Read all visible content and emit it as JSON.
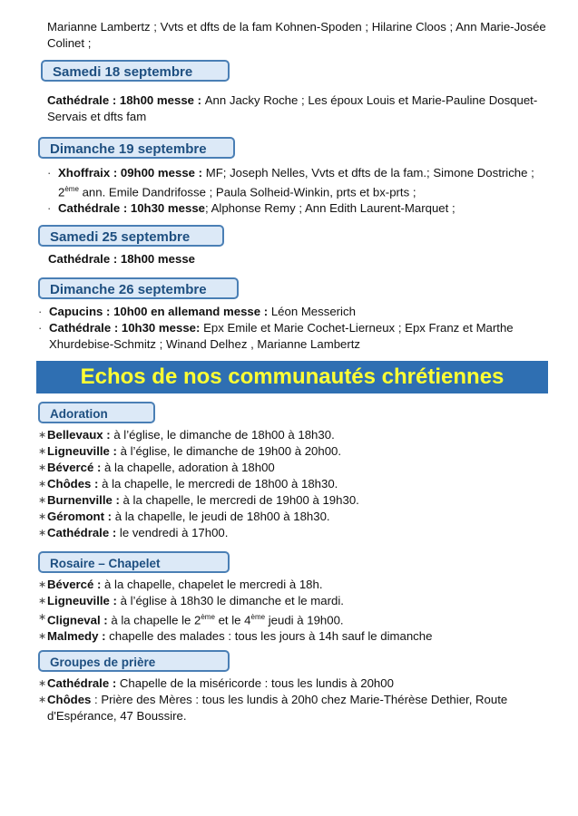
{
  "intro": [
    [
      {
        "t": "Marianne Lambertz ; Vvts et dfts de la fam Kohnen-Spoden ; Hilarine Cloos ; Ann Marie-Josée Colinet ;"
      }
    ]
  ],
  "sections": [
    {
      "header": "Samedi 18 septembre",
      "bullet": "",
      "items": [
        [
          {
            "t": "Cathédrale : 18h00 messe : ",
            "b": true
          },
          {
            "t": "Ann Jacky Roche ; Les époux Louis et Marie-Pauline Dosquet-Servais et dfts fam"
          }
        ]
      ]
    },
    {
      "header": "Dimanche 19 septembre",
      "bullet": "·",
      "items": [
        [
          {
            "t": "Xhoffraix : 09h00 messe : ",
            "b": true
          },
          {
            "t": "MF; Joseph Nelles, Vvts et dfts de la fam.; Simone Dostriche ; 2"
          },
          {
            "t": "ème",
            "sup": true
          },
          {
            "t": " ann. Emile Dandrifosse ; Paula Solheid-Winkin, prts et bx-prts ;"
          }
        ],
        [
          {
            "t": "Cathédrale : 10h30 messe",
            "b": true
          },
          {
            "t": "; Alphonse Remy ; Ann Edith Laurent-Marquet ;"
          }
        ]
      ]
    },
    {
      "header": "Samedi 25 septembre",
      "bullet": "",
      "items": [
        [
          {
            "t": "Cathédrale : 18h00 messe",
            "b": true
          }
        ]
      ]
    },
    {
      "header": "Dimanche 26 septembre",
      "bullet": "·",
      "items": [
        [
          {
            "t": "Capucins : 10h00 en allemand messe : ",
            "b": true
          },
          {
            "t": "Léon Messerich"
          }
        ],
        [
          {
            "t": "Cathédrale : 10h30 messe: ",
            "b": true
          },
          {
            "t": "Epx Emile et Marie Cochet-Lierneux ; Epx Franz et Marthe Xhurdebise-Schmitz ; Winand Delhez , Marianne Lambertz"
          }
        ]
      ]
    }
  ],
  "banner": "Echos de nos communautés chrétiennes",
  "groups": [
    {
      "header": "Adoration",
      "bullet": "∗",
      "items": [
        [
          {
            "t": "Bellevaux : ",
            "b": true
          },
          {
            "t": "à l’église, le dimanche de 18h00 à 18h30."
          }
        ],
        [
          {
            "t": "Ligneuville : ",
            "b": true
          },
          {
            "t": "à l’église, le dimanche de 19h00 à 20h00."
          }
        ],
        [
          {
            "t": "Bévercé : ",
            "b": true
          },
          {
            "t": "à la chapelle, adoration à 18h00"
          }
        ],
        [
          {
            "t": "Chôdes : ",
            "b": true
          },
          {
            "t": "à la chapelle, le mercredi de 18h00 à 18h30."
          }
        ],
        [
          {
            "t": "Burnenville : ",
            "b": true
          },
          {
            "t": "à la chapelle, le mercredi de 19h00 à 19h30."
          }
        ],
        [
          {
            "t": "Géromont : ",
            "b": true
          },
          {
            "t": "à la chapelle, le jeudi de 18h00 à 18h30."
          }
        ],
        [
          {
            "t": "Cathédrale : ",
            "b": true
          },
          {
            "t": "le vendredi à 17h00."
          }
        ]
      ]
    },
    {
      "header": "Rosaire – Chapelet",
      "bullet": "∗",
      "items": [
        [
          {
            "t": "Bévercé : ",
            "b": true
          },
          {
            "t": "à la chapelle, chapelet le mercredi à 18h."
          }
        ],
        [
          {
            "t": "Ligneuville : ",
            "b": true
          },
          {
            "t": "à l’église à 18h30 le dimanche et le mardi."
          }
        ],
        [
          {
            "t": "Cligneval : ",
            "b": true
          },
          {
            "t": "à la chapelle le 2"
          },
          {
            "t": "ème",
            "sup": true
          },
          {
            "t": " et le 4"
          },
          {
            "t": "ème",
            "sup": true
          },
          {
            "t": " jeudi à 19h00."
          }
        ],
        [
          {
            "t": "Malmedy : ",
            "b": true
          },
          {
            "t": "chapelle des malades : tous les jours à 14h sauf le dimanche"
          }
        ]
      ]
    },
    {
      "header": "Groupes de prière",
      "bullet": "∗",
      "items": [
        [
          {
            "t": "Cathédrale : ",
            "b": true
          },
          {
            "t": "Chapelle de la miséricorde : tous les lundis à 20h00"
          }
        ],
        [
          {
            "t": "Chôdes",
            "b": true
          },
          {
            "t": " : Prière des Mères : tous les lundis à 20h0 chez Marie-Thérèse Dethier, Route d'Espérance, 47 Boussire."
          }
        ]
      ]
    }
  ],
  "colors": {
    "header_border": "#4a7fb5",
    "header_bg": "#dce9f7",
    "header_text": "#1e4f80",
    "banner_bg": "#2f6fb2",
    "banner_text": "#ffff33"
  }
}
